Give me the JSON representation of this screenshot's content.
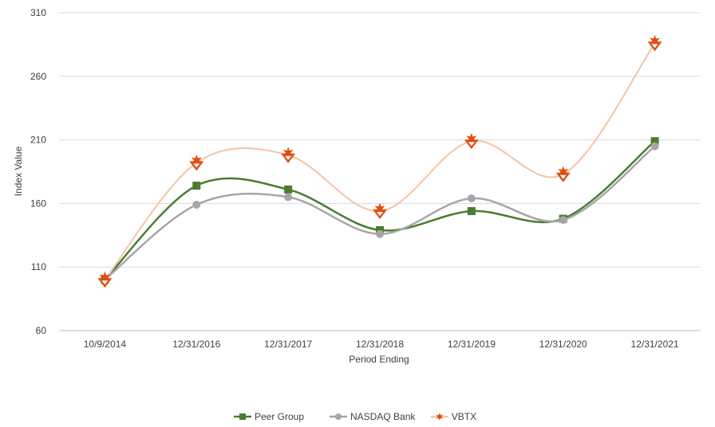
{
  "chart_data": {
    "type": "line",
    "xlabel": "Period Ending",
    "ylabel": "Index Value",
    "categories": [
      "10/9/2014",
      "12/31/2016",
      "12/31/2017",
      "12/31/2018",
      "12/31/2019",
      "12/31/2020",
      "12/31/2021"
    ],
    "ylim": [
      60,
      310
    ],
    "yticks": [
      "60",
      "110",
      "160",
      "210",
      "260",
      "310"
    ],
    "grid": "horizontal",
    "legend_position": "bottom",
    "smooth": true,
    "series": [
      {
        "name": "Peer Group",
        "color": "#4a7c2f",
        "marker": "square",
        "values": [
          100,
          174,
          171,
          139,
          154,
          148,
          209
        ]
      },
      {
        "name": "NASDAQ Bank",
        "color": "#a6a6a6",
        "marker": "circle",
        "values": [
          100,
          159,
          165,
          136,
          164,
          147,
          205
        ]
      },
      {
        "name": "VBTX",
        "color": "#f2c4a6",
        "marker": "star",
        "marker_color": "#e04e10",
        "values": [
          100,
          192,
          198,
          154,
          209,
          183,
          286
        ]
      }
    ]
  }
}
